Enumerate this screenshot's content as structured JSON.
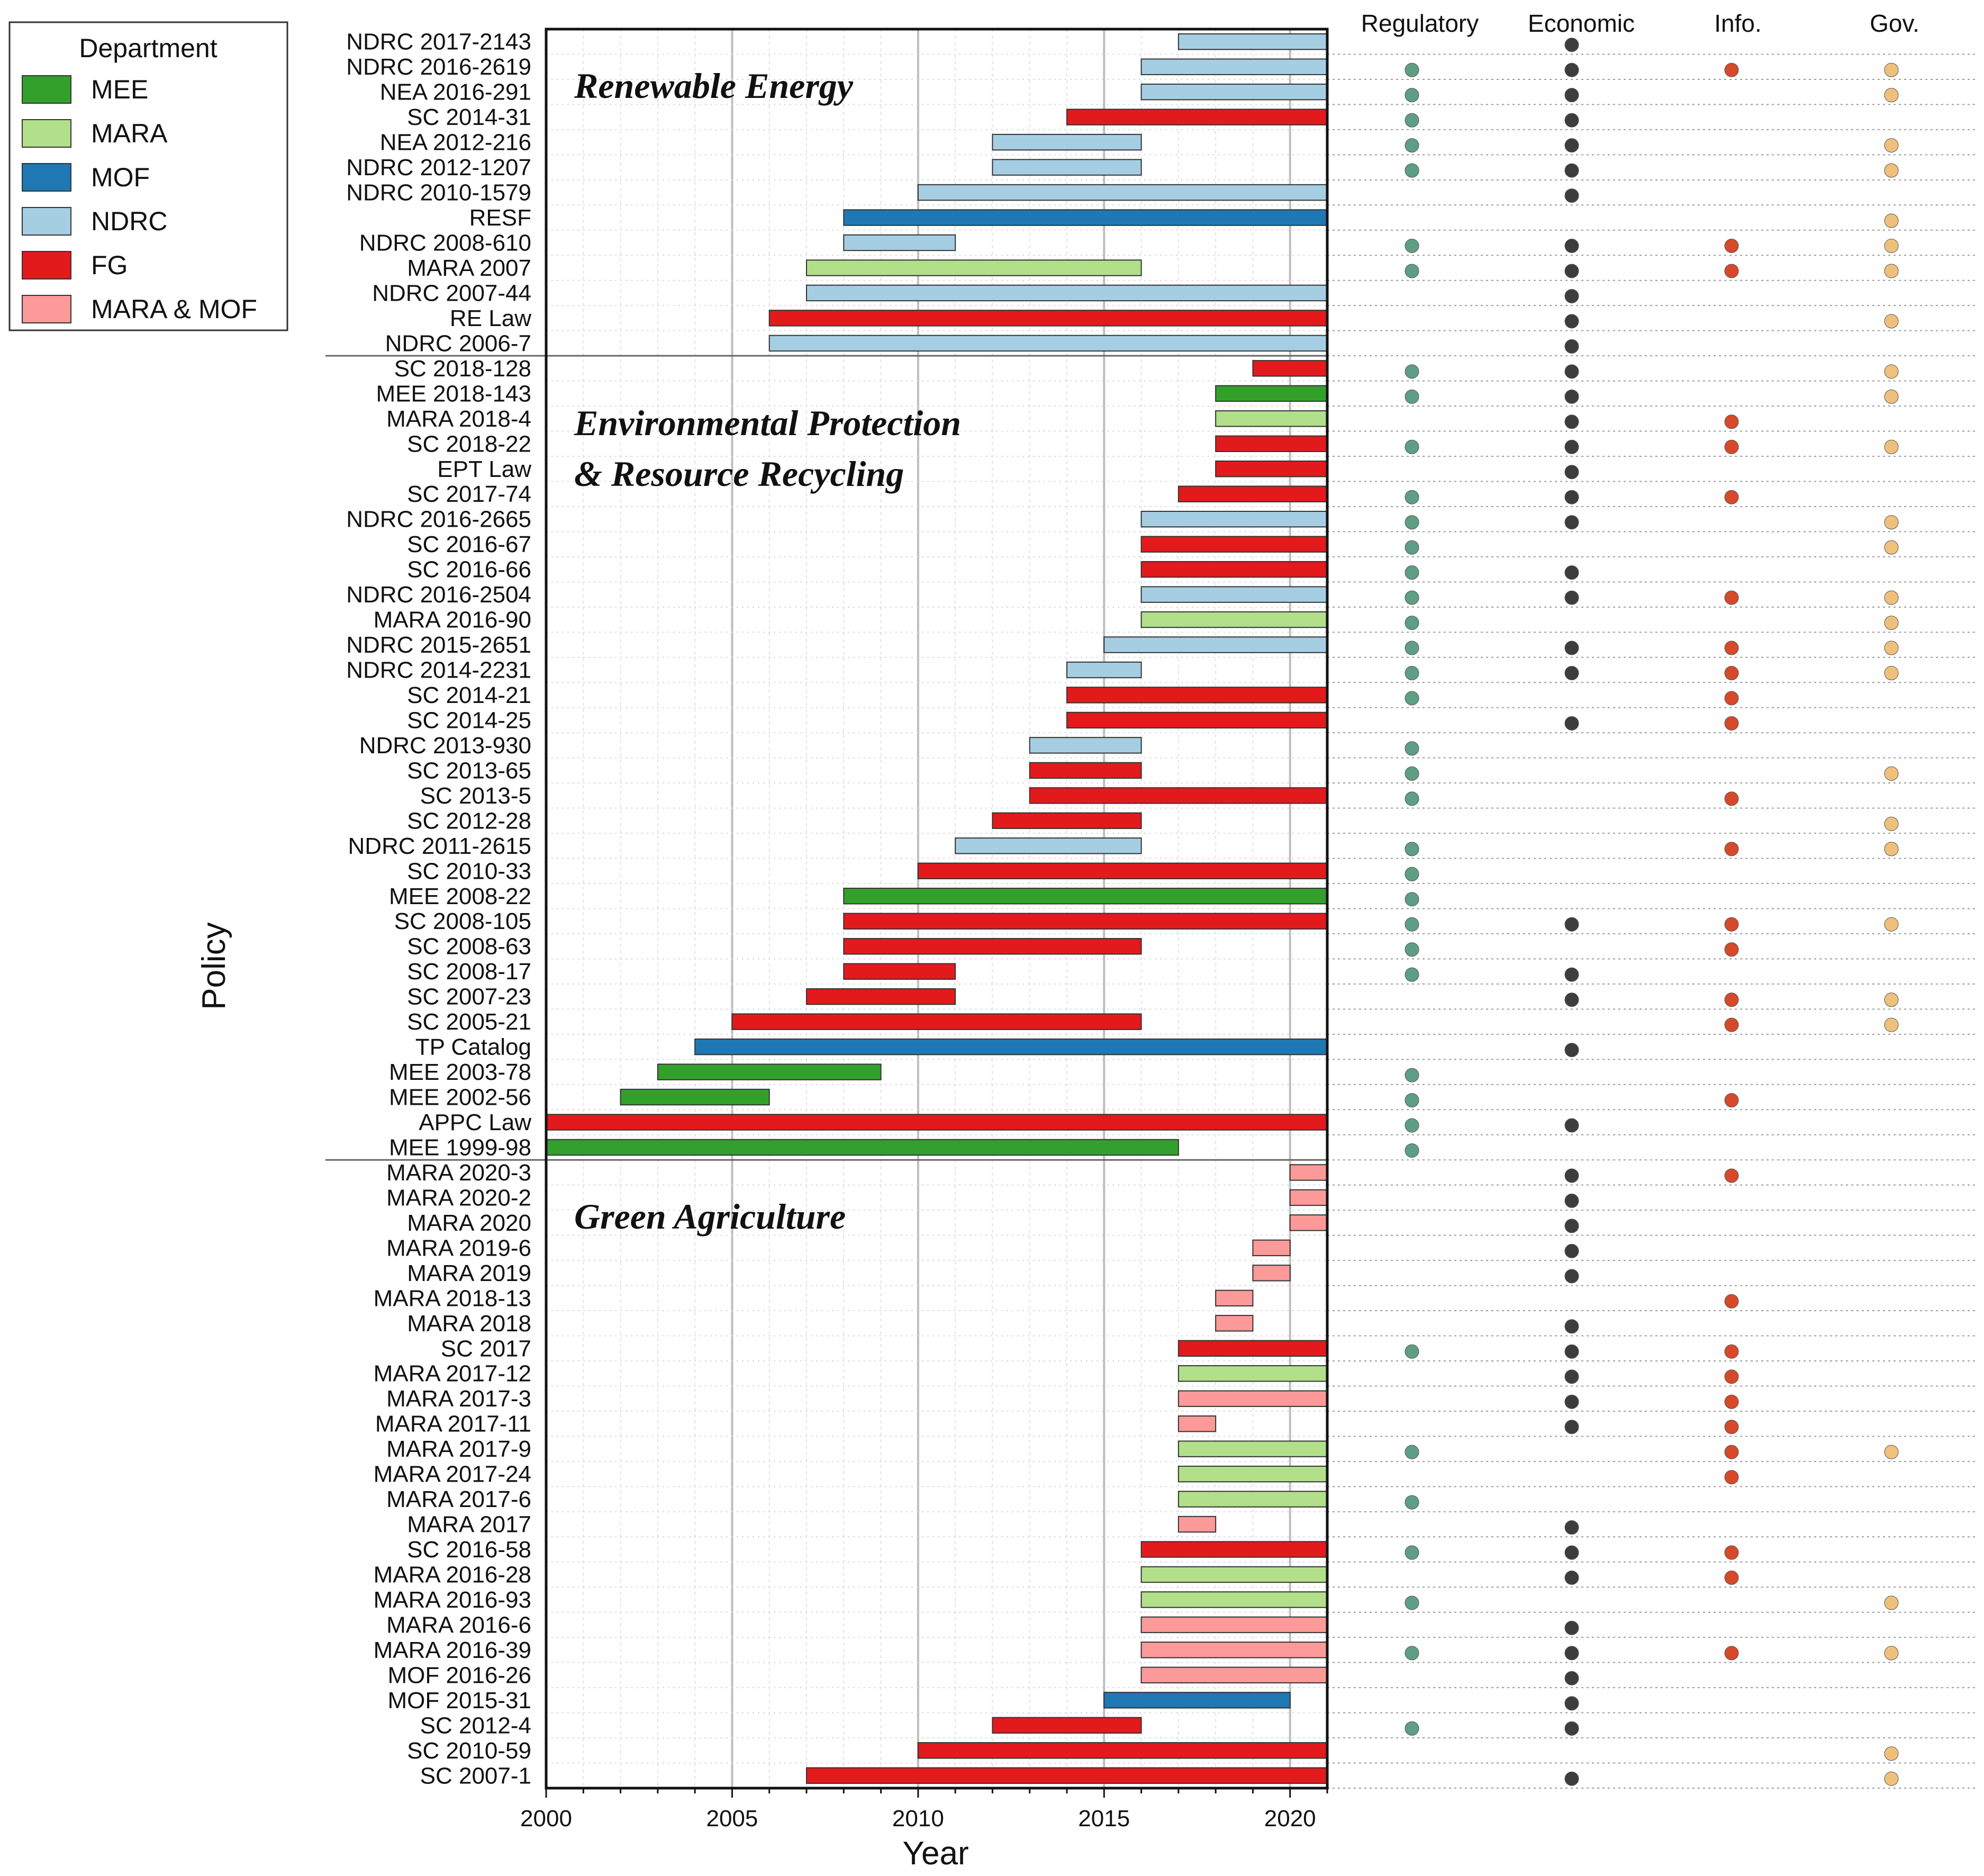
{
  "chart_data": {
    "type": "gantt",
    "xlabel": "Year",
    "ylabel": "Policy",
    "xlim": [
      2000,
      2021
    ],
    "xticks": [
      "2000",
      "2005",
      "2010",
      "2015",
      "2020"
    ],
    "legend": {
      "title": "Department",
      "position": "top-left-outside",
      "items": [
        {
          "label": "MEE",
          "color": "#33a02c"
        },
        {
          "label": "MARA",
          "color": "#b2df8a"
        },
        {
          "label": "MOF",
          "color": "#1f78b4"
        },
        {
          "label": "NDRC",
          "color": "#a6cee3"
        },
        {
          "label": "FG",
          "color": "#e31a1c"
        },
        {
          "label": "MARA & MOF",
          "color": "#fb9a99"
        }
      ]
    },
    "instrument_columns": [
      {
        "label": "Regulatory",
        "color": "#5e9e84"
      },
      {
        "label": "Economic",
        "color": "#3d3d3d"
      },
      {
        "label": "Info.",
        "color": "#d6492a"
      },
      {
        "label": "Gov.",
        "color": "#efc07c"
      }
    ],
    "sections": [
      {
        "title_lines": [
          "Renewable Energy"
        ],
        "policies": [
          {
            "name": "NDRC 2017-2143",
            "start": 2017,
            "end": 2021,
            "dept": "NDRC",
            "instruments": [
              0,
              1,
              0,
              0
            ]
          },
          {
            "name": "NDRC 2016-2619",
            "start": 2016,
            "end": 2021,
            "dept": "NDRC",
            "instruments": [
              1,
              1,
              1,
              1
            ]
          },
          {
            "name": "NEA 2016-291",
            "start": 2016,
            "end": 2021,
            "dept": "NDRC",
            "instruments": [
              1,
              1,
              0,
              1
            ]
          },
          {
            "name": "SC 2014-31",
            "start": 2014,
            "end": 2021,
            "dept": "FG",
            "instruments": [
              1,
              1,
              0,
              0
            ]
          },
          {
            "name": "NEA 2012-216",
            "start": 2012,
            "end": 2016,
            "dept": "NDRC",
            "instruments": [
              1,
              1,
              0,
              1
            ]
          },
          {
            "name": "NDRC 2012-1207",
            "start": 2012,
            "end": 2016,
            "dept": "NDRC",
            "instruments": [
              1,
              1,
              0,
              1
            ]
          },
          {
            "name": "NDRC 2010-1579",
            "start": 2010,
            "end": 2021,
            "dept": "NDRC",
            "instruments": [
              0,
              1,
              0,
              0
            ]
          },
          {
            "name": "RESF",
            "start": 2008,
            "end": 2021,
            "dept": "MOF",
            "instruments": [
              0,
              0,
              0,
              1
            ]
          },
          {
            "name": "NDRC 2008-610",
            "start": 2008,
            "end": 2011,
            "dept": "NDRC",
            "instruments": [
              1,
              1,
              1,
              1
            ]
          },
          {
            "name": "MARA 2007",
            "start": 2007,
            "end": 2016,
            "dept": "MARA",
            "instruments": [
              1,
              1,
              1,
              1
            ]
          },
          {
            "name": "NDRC 2007-44",
            "start": 2007,
            "end": 2021,
            "dept": "NDRC",
            "instruments": [
              0,
              1,
              0,
              0
            ]
          },
          {
            "name": "RE Law",
            "start": 2006,
            "end": 2021,
            "dept": "FG",
            "instruments": [
              0,
              1,
              0,
              1
            ]
          },
          {
            "name": "NDRC 2006-7",
            "start": 2006,
            "end": 2021,
            "dept": "NDRC",
            "instruments": [
              0,
              1,
              0,
              0
            ]
          }
        ]
      },
      {
        "title_lines": [
          "Environmental Protection",
          "& Resource Recycling"
        ],
        "policies": [
          {
            "name": "SC 2018-128",
            "start": 2019,
            "end": 2021,
            "dept": "FG",
            "instruments": [
              1,
              1,
              0,
              1
            ]
          },
          {
            "name": "MEE 2018-143",
            "start": 2018,
            "end": 2021,
            "dept": "MEE",
            "instruments": [
              1,
              1,
              0,
              1
            ]
          },
          {
            "name": "MARA 2018-4",
            "start": 2018,
            "end": 2021,
            "dept": "MARA",
            "instruments": [
              0,
              1,
              1,
              0
            ]
          },
          {
            "name": "SC 2018-22",
            "start": 2018,
            "end": 2021,
            "dept": "FG",
            "instruments": [
              1,
              1,
              1,
              1
            ]
          },
          {
            "name": "EPT Law",
            "start": 2018,
            "end": 2021,
            "dept": "FG",
            "instruments": [
              0,
              1,
              0,
              0
            ]
          },
          {
            "name": "SC 2017-74",
            "start": 2017,
            "end": 2021,
            "dept": "FG",
            "instruments": [
              1,
              1,
              1,
              0
            ]
          },
          {
            "name": "NDRC 2016-2665",
            "start": 2016,
            "end": 2021,
            "dept": "NDRC",
            "instruments": [
              1,
              1,
              0,
              1
            ]
          },
          {
            "name": "SC 2016-67",
            "start": 2016,
            "end": 2021,
            "dept": "FG",
            "instruments": [
              1,
              0,
              0,
              1
            ]
          },
          {
            "name": "SC 2016-66",
            "start": 2016,
            "end": 2021,
            "dept": "FG",
            "instruments": [
              1,
              1,
              0,
              0
            ]
          },
          {
            "name": "NDRC 2016-2504",
            "start": 2016,
            "end": 2021,
            "dept": "NDRC",
            "instruments": [
              1,
              1,
              1,
              1
            ]
          },
          {
            "name": "MARA 2016-90",
            "start": 2016,
            "end": 2021,
            "dept": "MARA",
            "instruments": [
              1,
              0,
              0,
              1
            ]
          },
          {
            "name": "NDRC 2015-2651",
            "start": 2015,
            "end": 2021,
            "dept": "NDRC",
            "instruments": [
              1,
              1,
              1,
              1
            ]
          },
          {
            "name": "NDRC 2014-2231",
            "start": 2014,
            "end": 2016,
            "dept": "NDRC",
            "instruments": [
              1,
              1,
              1,
              1
            ]
          },
          {
            "name": "SC 2014-21",
            "start": 2014,
            "end": 2021,
            "dept": "FG",
            "instruments": [
              1,
              0,
              1,
              0
            ]
          },
          {
            "name": "SC 2014-25",
            "start": 2014,
            "end": 2021,
            "dept": "FG",
            "instruments": [
              0,
              1,
              1,
              0
            ]
          },
          {
            "name": "NDRC 2013-930",
            "start": 2013,
            "end": 2016,
            "dept": "NDRC",
            "instruments": [
              1,
              0,
              0,
              0
            ]
          },
          {
            "name": "SC 2013-65",
            "start": 2013,
            "end": 2016,
            "dept": "FG",
            "instruments": [
              1,
              0,
              0,
              1
            ]
          },
          {
            "name": "SC 2013-5",
            "start": 2013,
            "end": 2021,
            "dept": "FG",
            "instruments": [
              1,
              0,
              1,
              0
            ]
          },
          {
            "name": "SC 2012-28",
            "start": 2012,
            "end": 2016,
            "dept": "FG",
            "instruments": [
              0,
              0,
              0,
              1
            ]
          },
          {
            "name": "NDRC 2011-2615",
            "start": 2011,
            "end": 2016,
            "dept": "NDRC",
            "instruments": [
              1,
              0,
              1,
              1
            ]
          },
          {
            "name": "SC 2010-33",
            "start": 2010,
            "end": 2021,
            "dept": "FG",
            "instruments": [
              1,
              0,
              0,
              0
            ]
          },
          {
            "name": "MEE 2008-22",
            "start": 2008,
            "end": 2021,
            "dept": "MEE",
            "instruments": [
              1,
              0,
              0,
              0
            ]
          },
          {
            "name": "SC 2008-105",
            "start": 2008,
            "end": 2021,
            "dept": "FG",
            "instruments": [
              1,
              1,
              1,
              1
            ]
          },
          {
            "name": "SC 2008-63",
            "start": 2008,
            "end": 2016,
            "dept": "FG",
            "instruments": [
              1,
              0,
              1,
              0
            ]
          },
          {
            "name": "SC 2008-17",
            "start": 2008,
            "end": 2011,
            "dept": "FG",
            "instruments": [
              1,
              1,
              0,
              0
            ]
          },
          {
            "name": "SC 2007-23",
            "start": 2007,
            "end": 2011,
            "dept": "FG",
            "instruments": [
              0,
              1,
              1,
              1
            ]
          },
          {
            "name": "SC 2005-21",
            "start": 2005,
            "end": 2016,
            "dept": "FG",
            "instruments": [
              0,
              0,
              1,
              1
            ]
          },
          {
            "name": "TP Catalog",
            "start": 2004,
            "end": 2021,
            "dept": "MOF",
            "instruments": [
              0,
              1,
              0,
              0
            ]
          },
          {
            "name": "MEE 2003-78",
            "start": 2003,
            "end": 2009,
            "dept": "MEE",
            "instruments": [
              1,
              0,
              0,
              0
            ]
          },
          {
            "name": "MEE 2002-56",
            "start": 2002,
            "end": 2006,
            "dept": "MEE",
            "instruments": [
              1,
              0,
              1,
              0
            ]
          },
          {
            "name": "APPC Law",
            "start": 2000,
            "end": 2021,
            "dept": "FG",
            "instruments": [
              1,
              1,
              0,
              0
            ]
          },
          {
            "name": "MEE 1999-98",
            "start": 2000,
            "end": 2017,
            "dept": "MEE",
            "instruments": [
              1,
              0,
              0,
              0
            ]
          }
        ]
      },
      {
        "title_lines": [
          "Green Agriculture"
        ],
        "policies": [
          {
            "name": "MARA 2020-3",
            "start": 2020,
            "end": 2021,
            "dept": "MARA & MOF",
            "instruments": [
              0,
              1,
              1,
              0
            ]
          },
          {
            "name": "MARA 2020-2",
            "start": 2020,
            "end": 2021,
            "dept": "MARA & MOF",
            "instruments": [
              0,
              1,
              0,
              0
            ]
          },
          {
            "name": "MARA 2020",
            "start": 2020,
            "end": 2021,
            "dept": "MARA & MOF",
            "instruments": [
              0,
              1,
              0,
              0
            ]
          },
          {
            "name": "MARA 2019-6",
            "start": 2019,
            "end": 2020,
            "dept": "MARA & MOF",
            "instruments": [
              0,
              1,
              0,
              0
            ]
          },
          {
            "name": "MARA 2019",
            "start": 2019,
            "end": 2020,
            "dept": "MARA & MOF",
            "instruments": [
              0,
              1,
              0,
              0
            ]
          },
          {
            "name": "MARA 2018-13",
            "start": 2018,
            "end": 2019,
            "dept": "MARA & MOF",
            "instruments": [
              0,
              0,
              1,
              0
            ]
          },
          {
            "name": "MARA 2018",
            "start": 2018,
            "end": 2019,
            "dept": "MARA & MOF",
            "instruments": [
              0,
              1,
              0,
              0
            ]
          },
          {
            "name": "SC 2017",
            "start": 2017,
            "end": 2021,
            "dept": "FG",
            "instruments": [
              1,
              1,
              1,
              0
            ]
          },
          {
            "name": "MARA 2017-12",
            "start": 2017,
            "end": 2021,
            "dept": "MARA",
            "instruments": [
              0,
              1,
              1,
              0
            ]
          },
          {
            "name": "MARA 2017-3",
            "start": 2017,
            "end": 2021,
            "dept": "MARA & MOF",
            "instruments": [
              0,
              1,
              1,
              0
            ]
          },
          {
            "name": "MARA 2017-11",
            "start": 2017,
            "end": 2018,
            "dept": "MARA & MOF",
            "instruments": [
              0,
              1,
              1,
              0
            ]
          },
          {
            "name": "MARA 2017-9",
            "start": 2017,
            "end": 2021,
            "dept": "MARA",
            "instruments": [
              1,
              0,
              1,
              1
            ]
          },
          {
            "name": "MARA 2017-24",
            "start": 2017,
            "end": 2021,
            "dept": "MARA",
            "instruments": [
              0,
              0,
              1,
              0
            ]
          },
          {
            "name": "MARA 2017-6",
            "start": 2017,
            "end": 2021,
            "dept": "MARA",
            "instruments": [
              1,
              0,
              0,
              0
            ]
          },
          {
            "name": "MARA 2017",
            "start": 2017,
            "end": 2018,
            "dept": "MARA & MOF",
            "instruments": [
              0,
              1,
              0,
              0
            ]
          },
          {
            "name": "SC 2016-58",
            "start": 2016,
            "end": 2021,
            "dept": "FG",
            "instruments": [
              1,
              1,
              1,
              0
            ]
          },
          {
            "name": "MARA 2016-28",
            "start": 2016,
            "end": 2021,
            "dept": "MARA",
            "instruments": [
              0,
              1,
              1,
              0
            ]
          },
          {
            "name": "MARA 2016-93",
            "start": 2016,
            "end": 2021,
            "dept": "MARA",
            "instruments": [
              1,
              0,
              0,
              1
            ]
          },
          {
            "name": "MARA 2016-6",
            "start": 2016,
            "end": 2021,
            "dept": "MARA & MOF",
            "instruments": [
              0,
              1,
              0,
              0
            ]
          },
          {
            "name": "MARA 2016-39",
            "start": 2016,
            "end": 2021,
            "dept": "MARA & MOF",
            "instruments": [
              1,
              1,
              1,
              1
            ]
          },
          {
            "name": "MOF 2016-26",
            "start": 2016,
            "end": 2021,
            "dept": "MARA & MOF",
            "instruments": [
              0,
              1,
              0,
              0
            ]
          },
          {
            "name": "MOF 2015-31",
            "start": 2015,
            "end": 2020,
            "dept": "MOF",
            "instruments": [
              0,
              1,
              0,
              0
            ]
          },
          {
            "name": "SC 2012-4",
            "start": 2012,
            "end": 2016,
            "dept": "FG",
            "instruments": [
              1,
              1,
              0,
              0
            ]
          },
          {
            "name": "SC 2010-59",
            "start": 2010,
            "end": 2021,
            "dept": "FG",
            "instruments": [
              0,
              0,
              0,
              1
            ]
          },
          {
            "name": "SC 2007-1",
            "start": 2007,
            "end": 2021,
            "dept": "FG",
            "instruments": [
              0,
              1,
              0,
              1
            ]
          }
        ]
      }
    ]
  }
}
